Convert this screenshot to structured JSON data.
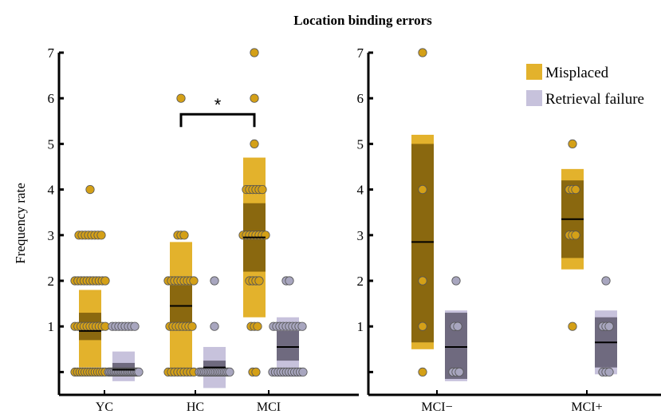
{
  "chart_data": [
    {
      "type": "scatter",
      "title": "Location binding errors",
      "ylabel": "Frequency rate",
      "ylim": [
        -0.5,
        7
      ],
      "y_ticks": [
        "1",
        "2",
        "3",
        "4",
        "5",
        "6",
        "7"
      ],
      "categories": [
        "YC",
        "HC",
        "MCI"
      ],
      "significance": {
        "between": [
          "HC",
          "MCI"
        ],
        "label": "*"
      },
      "series": [
        {
          "name": "Misplaced",
          "color": "#e3b22c",
          "dot_color": "#d4a017",
          "groups": [
            {
              "category": "YC",
              "mean": 0.9,
              "sd_band": [
                0.1,
                1.8
              ],
              "sem_band": [
                0.7,
                1.3
              ],
              "points": [
                0,
                0,
                0,
                0,
                0,
                0,
                0,
                0,
                0,
                0,
                0,
                0,
                0,
                1,
                1,
                1,
                1,
                1,
                1,
                1,
                1,
                1,
                1,
                1,
                2,
                2,
                2,
                2,
                2,
                2,
                2,
                2,
                2,
                2,
                2,
                3,
                3,
                3,
                3,
                3,
                3,
                3,
                3,
                4
              ]
            },
            {
              "category": "HC",
              "mean": 1.45,
              "sd_band": [
                0.0,
                2.85
              ],
              "sem_band": [
                1.0,
                1.9
              ],
              "points": [
                0,
                0,
                0,
                0,
                0,
                0,
                0,
                0,
                0,
                1,
                1,
                1,
                1,
                1,
                1,
                1,
                1,
                2,
                2,
                2,
                2,
                2,
                2,
                2,
                2,
                2,
                3,
                3,
                3,
                6
              ]
            },
            {
              "category": "MCI",
              "mean": 2.95,
              "sd_band": [
                1.2,
                4.7
              ],
              "sem_band": [
                2.2,
                3.7
              ],
              "points": [
                0,
                0,
                1,
                1,
                1,
                2,
                2,
                2,
                2,
                3,
                3,
                3,
                3,
                3,
                3,
                3,
                3,
                4,
                4,
                4,
                4,
                4,
                4,
                5,
                6,
                7
              ]
            }
          ]
        },
        {
          "name": "Retrieval failure",
          "color": "#c7c2dc",
          "dot_color": "#a8a6bf",
          "groups": [
            {
              "category": "YC",
              "mean": 0.05,
              "sd_band": [
                -0.2,
                0.45
              ],
              "sem_band": [
                -0.05,
                0.2
              ],
              "points": [
                0,
                0,
                0,
                0,
                0,
                0,
                0,
                0,
                0,
                0,
                0,
                0,
                0,
                0,
                0,
                0,
                0,
                0,
                0,
                0,
                0,
                0,
                1,
                1,
                1,
                1,
                1,
                1,
                1,
                1
              ]
            },
            {
              "category": "HC",
              "mean": 0.1,
              "sd_band": [
                -0.35,
                0.55
              ],
              "sem_band": [
                -0.05,
                0.25
              ],
              "points": [
                0,
                0,
                0,
                0,
                0,
                0,
                0,
                0,
                0,
                0,
                0,
                0,
                0,
                0,
                0,
                0,
                0,
                0,
                1,
                2
              ]
            },
            {
              "category": "MCI",
              "mean": 0.55,
              "sd_band": [
                -0.1,
                1.2
              ],
              "sem_band": [
                0.25,
                0.9
              ],
              "points": [
                0,
                0,
                0,
                0,
                0,
                0,
                0,
                0,
                0,
                0,
                0,
                0,
                1,
                1,
                1,
                1,
                1,
                1,
                1,
                1,
                1,
                1,
                2,
                2
              ]
            }
          ]
        }
      ]
    },
    {
      "type": "scatter",
      "title": "",
      "ylabel": "",
      "ylim": [
        -0.5,
        7
      ],
      "y_ticks": [
        "1",
        "2",
        "3",
        "4",
        "5",
        "6",
        "7"
      ],
      "categories": [
        "MCI−",
        "MCI+"
      ],
      "legend": {
        "placement": "top-right",
        "items": [
          "Misplaced",
          "Retrieval failure"
        ]
      },
      "series": [
        {
          "name": "Misplaced",
          "color": "#e3b22c",
          "dot_color": "#d4a017",
          "groups": [
            {
              "category": "MCI−",
              "mean": 2.85,
              "sd_band": [
                0.5,
                5.2
              ],
              "sem_band": [
                0.65,
                5.0
              ],
              "points": [
                0,
                1,
                2,
                4,
                7
              ]
            },
            {
              "category": "MCI+",
              "mean": 3.35,
              "sd_band": [
                2.25,
                4.45
              ],
              "sem_band": [
                2.5,
                4.2
              ],
              "points": [
                1,
                3,
                3,
                3,
                4,
                4,
                4,
                5
              ]
            }
          ]
        },
        {
          "name": "Retrieval failure",
          "color": "#c7c2dc",
          "dot_color": "#a8a6bf",
          "groups": [
            {
              "category": "MCI−",
              "mean": 0.55,
              "sd_band": [
                -0.2,
                1.35
              ],
              "sem_band": [
                -0.15,
                1.3
              ],
              "points": [
                0,
                0,
                0,
                1,
                1,
                2
              ]
            },
            {
              "category": "MCI+",
              "mean": 0.65,
              "sd_band": [
                -0.05,
                1.35
              ],
              "sem_band": [
                0.1,
                1.2
              ],
              "points": [
                0,
                0,
                0,
                1,
                1,
                1,
                2
              ]
            }
          ]
        }
      ]
    }
  ]
}
